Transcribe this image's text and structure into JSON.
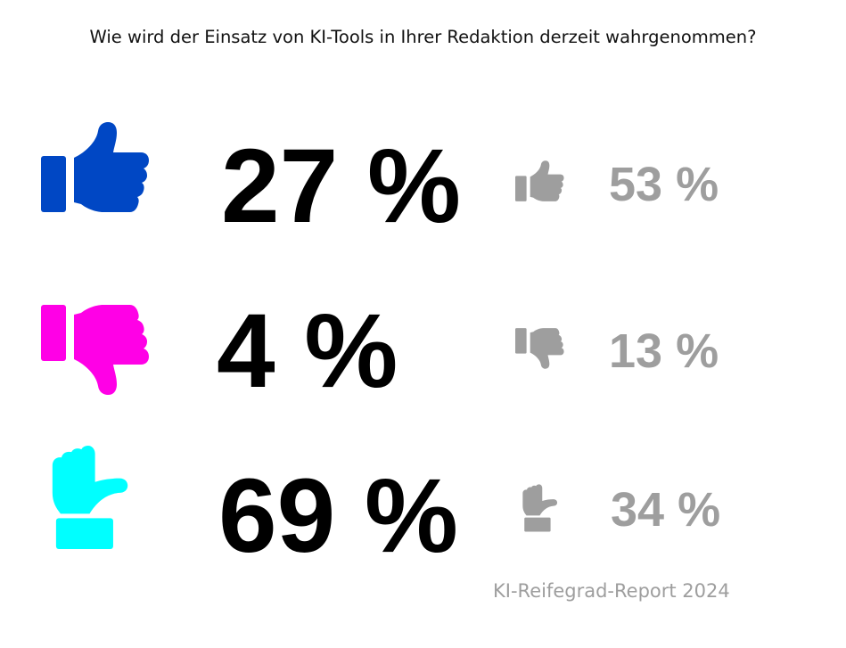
{
  "title": "Wie wird der Einsatz von KI-Tools in Ihrer Redaktion derzeit wahrgenommen?",
  "footer": "KI-Reifegrad-Report 2024",
  "chart_data": {
    "type": "table",
    "title": "Wie wird der Einsatz von KI-Tools in Ihrer Redaktion derzeit wahrgenommen?",
    "categories": [
      "thumbs-up",
      "thumbs-down",
      "thumbs-sideways"
    ],
    "columns": [
      {
        "values": [
          27,
          4,
          69
        ],
        "labels": [
          "27 %",
          "4 %",
          "69 %"
        ],
        "color": "#000000"
      },
      {
        "values": [
          53,
          13,
          34
        ],
        "labels": [
          "53 %",
          "13 %",
          "34 %"
        ],
        "color": "#9e9e9e"
      }
    ],
    "icon_colors": [
      "#0047c4",
      "#ff00e6",
      "#00ffff"
    ],
    "secondary_icon_color": "#9e9e9e"
  }
}
